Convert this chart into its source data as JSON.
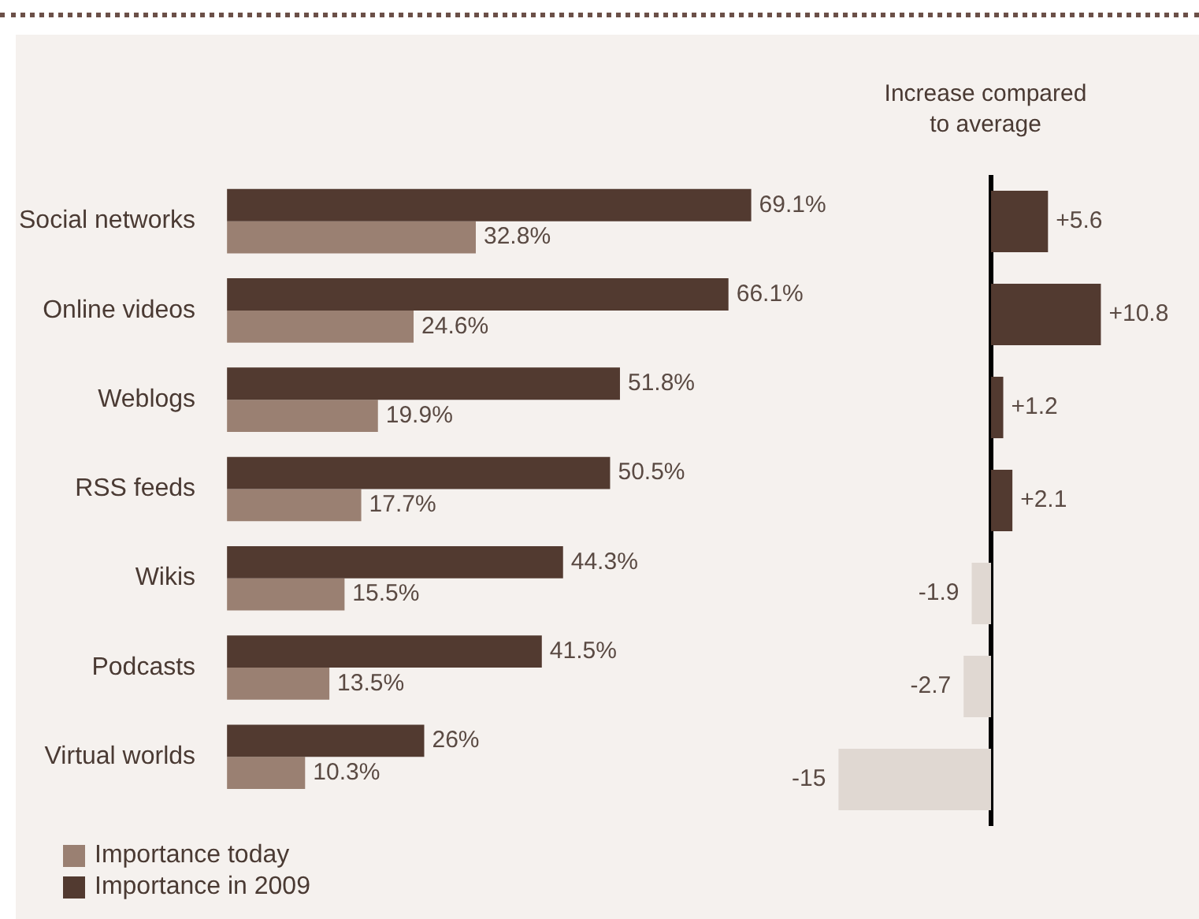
{
  "chart_data": [
    {
      "type": "bar",
      "orientation": "horizontal",
      "categories": [
        "Social networks",
        "Online videos",
        "Weblogs",
        "RSS feeds",
        "Wikis",
        "Podcasts",
        "Virtual worlds"
      ],
      "series": [
        {
          "name": "Importance in 2009",
          "color": "#523a30",
          "values": [
            69.1,
            66.1,
            51.8,
            50.5,
            44.3,
            41.5,
            26
          ],
          "value_labels": [
            "69.1%",
            "66.1%",
            "51.8%",
            "50.5%",
            "44.3%",
            "41.5%",
            "26%"
          ]
        },
        {
          "name": "Importance today",
          "color": "#9a8072",
          "values": [
            32.8,
            24.6,
            19.9,
            17.7,
            15.5,
            13.5,
            10.3
          ],
          "value_labels": [
            "32.8%",
            "24.6%",
            "19.9%",
            "17.7%",
            "15.5%",
            "13.5%",
            "10.3%"
          ]
        }
      ],
      "legend": "bottom left",
      "tick_labels": "y"
    },
    {
      "type": "bar",
      "orientation": "horizontal",
      "title": "Increase compared to average",
      "categories": [
        null,
        null,
        null,
        null,
        null,
        null,
        null
      ],
      "values": [
        5.6,
        10.8,
        1.2,
        2.1,
        -1.9,
        -2.7,
        -15
      ],
      "colors": [
        "#523a30",
        "#523a30",
        "#523a30",
        "#523a30",
        "#e0d8d2",
        "#e0d8d2",
        "#e0d8d2"
      ],
      "value_labels": [
        "+5.6",
        "+10.8",
        "+1.2",
        "+2.1",
        "-1.9",
        "-2.7",
        "-15"
      ],
      "tick_labels": false,
      "ref_lines": [
        {
          "axis": "x",
          "value": 0,
          "color": "#000000"
        }
      ]
    }
  ]
}
